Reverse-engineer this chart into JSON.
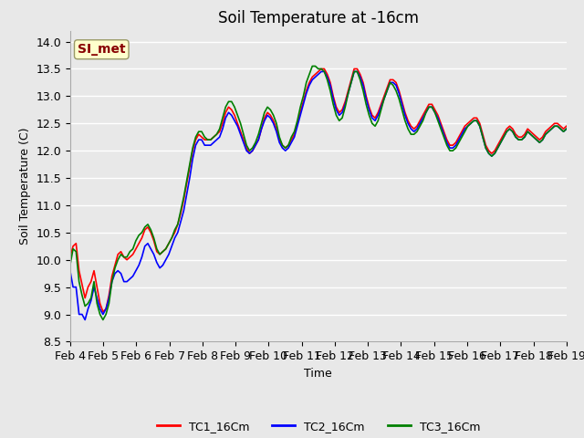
{
  "title": "Soil Temperature at -16cm",
  "xlabel": "Time",
  "ylabel": "Soil Temperature (C)",
  "ylim": [
    8.5,
    14.2
  ],
  "background_color": "#e8e8e8",
  "plot_bg_color": "#e8e8e8",
  "grid_color": "white",
  "annotation_text": "SI_met",
  "annotation_bg": "#ffffcc",
  "annotation_border": "#999966",
  "annotation_text_color": "#880000",
  "legend_labels": [
    "TC1_16Cm",
    "TC2_16Cm",
    "TC3_16Cm"
  ],
  "line_colors": [
    "red",
    "blue",
    "green"
  ],
  "x_tick_labels": [
    "Feb 4",
    "Feb 5",
    "Feb 6",
    "Feb 7",
    "Feb 8",
    "Feb 9",
    "Feb 10",
    "Feb 11",
    "Feb 12",
    "Feb 13",
    "Feb 14",
    "Feb 15",
    "Feb 16",
    "Feb 17",
    "Feb 18",
    "Feb 19"
  ],
  "tc1": [
    10.05,
    10.25,
    10.3,
    9.8,
    9.55,
    9.3,
    9.5,
    9.6,
    9.8,
    9.5,
    9.2,
    9.05,
    9.1,
    9.35,
    9.7,
    9.9,
    10.1,
    10.15,
    10.05,
    10.0,
    10.05,
    10.1,
    10.2,
    10.3,
    10.4,
    10.55,
    10.6,
    10.5,
    10.35,
    10.15,
    10.1,
    10.15,
    10.2,
    10.3,
    10.4,
    10.5,
    10.65,
    10.85,
    11.1,
    11.4,
    11.7,
    12.0,
    12.2,
    12.3,
    12.25,
    12.2,
    12.2,
    12.2,
    12.25,
    12.3,
    12.35,
    12.5,
    12.7,
    12.8,
    12.75,
    12.65,
    12.5,
    12.35,
    12.2,
    12.05,
    11.95,
    12.0,
    12.1,
    12.2,
    12.4,
    12.6,
    12.7,
    12.65,
    12.55,
    12.4,
    12.2,
    12.1,
    12.05,
    12.1,
    12.2,
    12.3,
    12.5,
    12.7,
    12.9,
    13.1,
    13.25,
    13.35,
    13.4,
    13.45,
    13.5,
    13.5,
    13.4,
    13.25,
    13.0,
    12.8,
    12.7,
    12.75,
    12.9,
    13.1,
    13.3,
    13.5,
    13.5,
    13.4,
    13.25,
    13.0,
    12.8,
    12.65,
    12.6,
    12.7,
    12.85,
    13.0,
    13.15,
    13.3,
    13.3,
    13.25,
    13.1,
    12.9,
    12.7,
    12.55,
    12.45,
    12.4,
    12.45,
    12.55,
    12.65,
    12.75,
    12.85,
    12.85,
    12.75,
    12.65,
    12.5,
    12.35,
    12.2,
    12.1,
    12.1,
    12.15,
    12.25,
    12.35,
    12.45,
    12.5,
    12.55,
    12.6,
    12.6,
    12.5,
    12.3,
    12.1,
    12.0,
    11.95,
    12.0,
    12.1,
    12.2,
    12.3,
    12.4,
    12.45,
    12.4,
    12.3,
    12.25,
    12.25,
    12.3,
    12.4,
    12.35,
    12.3,
    12.25,
    12.2,
    12.25,
    12.35,
    12.4,
    12.45,
    12.5,
    12.5,
    12.45,
    12.4,
    12.45
  ],
  "tc2": [
    9.8,
    9.5,
    9.5,
    9.0,
    9.0,
    8.9,
    9.1,
    9.25,
    9.5,
    9.3,
    9.1,
    9.0,
    9.1,
    9.3,
    9.6,
    9.75,
    9.8,
    9.75,
    9.6,
    9.6,
    9.65,
    9.7,
    9.8,
    9.9,
    10.05,
    10.25,
    10.3,
    10.2,
    10.1,
    9.95,
    9.85,
    9.9,
    10.0,
    10.1,
    10.25,
    10.4,
    10.5,
    10.7,
    10.9,
    11.2,
    11.5,
    11.85,
    12.1,
    12.2,
    12.2,
    12.1,
    12.1,
    12.1,
    12.15,
    12.2,
    12.25,
    12.4,
    12.6,
    12.7,
    12.65,
    12.55,
    12.45,
    12.3,
    12.15,
    12.0,
    11.95,
    12.0,
    12.1,
    12.2,
    12.4,
    12.55,
    12.65,
    12.6,
    12.5,
    12.35,
    12.15,
    12.05,
    12.0,
    12.05,
    12.15,
    12.25,
    12.45,
    12.65,
    12.85,
    13.05,
    13.2,
    13.3,
    13.35,
    13.4,
    13.45,
    13.45,
    13.35,
    13.2,
    12.95,
    12.75,
    12.65,
    12.7,
    12.85,
    13.05,
    13.25,
    13.45,
    13.45,
    13.35,
    13.2,
    12.95,
    12.75,
    12.6,
    12.55,
    12.65,
    12.8,
    12.95,
    13.1,
    13.25,
    13.25,
    13.2,
    13.05,
    12.85,
    12.65,
    12.5,
    12.4,
    12.35,
    12.4,
    12.5,
    12.6,
    12.7,
    12.8,
    12.8,
    12.7,
    12.6,
    12.45,
    12.3,
    12.15,
    12.05,
    12.05,
    12.1,
    12.2,
    12.3,
    12.4,
    12.45,
    12.5,
    12.55,
    12.55,
    12.45,
    12.25,
    12.05,
    11.95,
    11.9,
    11.95,
    12.05,
    12.15,
    12.25,
    12.35,
    12.4,
    12.35,
    12.25,
    12.2,
    12.2,
    12.25,
    12.35,
    12.3,
    12.25,
    12.2,
    12.15,
    12.2,
    12.3,
    12.35,
    12.4,
    12.45,
    12.45,
    12.4,
    12.35,
    12.4
  ],
  "tc3": [
    9.9,
    10.2,
    10.15,
    9.6,
    9.35,
    9.15,
    9.2,
    9.3,
    9.6,
    9.2,
    9.0,
    8.9,
    9.0,
    9.2,
    9.6,
    9.85,
    10.0,
    10.1,
    10.05,
    10.05,
    10.15,
    10.2,
    10.35,
    10.45,
    10.5,
    10.6,
    10.65,
    10.55,
    10.4,
    10.2,
    10.1,
    10.15,
    10.2,
    10.3,
    10.4,
    10.55,
    10.65,
    10.9,
    11.15,
    11.45,
    11.75,
    12.05,
    12.25,
    12.35,
    12.35,
    12.25,
    12.2,
    12.2,
    12.25,
    12.3,
    12.4,
    12.6,
    12.8,
    12.9,
    12.9,
    12.8,
    12.65,
    12.5,
    12.3,
    12.1,
    12.0,
    12.05,
    12.15,
    12.3,
    12.5,
    12.7,
    12.8,
    12.75,
    12.65,
    12.5,
    12.25,
    12.1,
    12.05,
    12.1,
    12.25,
    12.35,
    12.55,
    12.8,
    13.0,
    13.25,
    13.4,
    13.55,
    13.55,
    13.5,
    13.5,
    13.45,
    13.3,
    13.1,
    12.85,
    12.65,
    12.55,
    12.6,
    12.8,
    13.05,
    13.25,
    13.45,
    13.45,
    13.3,
    13.1,
    12.85,
    12.65,
    12.5,
    12.45,
    12.55,
    12.75,
    12.95,
    13.1,
    13.25,
    13.2,
    13.1,
    12.95,
    12.75,
    12.55,
    12.4,
    12.3,
    12.3,
    12.35,
    12.45,
    12.55,
    12.7,
    12.8,
    12.8,
    12.7,
    12.55,
    12.4,
    12.25,
    12.1,
    12.0,
    12.0,
    12.05,
    12.15,
    12.25,
    12.35,
    12.45,
    12.5,
    12.55,
    12.55,
    12.45,
    12.25,
    12.05,
    11.95,
    11.9,
    11.95,
    12.05,
    12.15,
    12.25,
    12.35,
    12.4,
    12.35,
    12.25,
    12.2,
    12.2,
    12.25,
    12.35,
    12.3,
    12.25,
    12.2,
    12.15,
    12.2,
    12.3,
    12.35,
    12.4,
    12.45,
    12.45,
    12.4,
    12.35,
    12.4
  ],
  "title_fontsize": 12,
  "label_fontsize": 9,
  "tick_fontsize": 9,
  "annot_fontsize": 10,
  "legend_fontsize": 9,
  "linewidth": 1.2
}
